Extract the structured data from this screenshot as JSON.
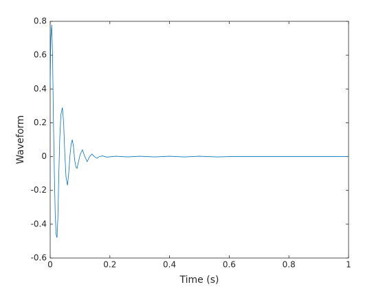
{
  "chart_data": {
    "type": "line",
    "xlabel": "Time (s)",
    "ylabel": "Waveform",
    "x": [
      0,
      0.002,
      0.005,
      0.008,
      0.011,
      0.014,
      0.017,
      0.02,
      0.023,
      0.026,
      0.029,
      0.032,
      0.036,
      0.041,
      0.045,
      0.049,
      0.053,
      0.058,
      0.062,
      0.066,
      0.07,
      0.074,
      0.078,
      0.082,
      0.086,
      0.09,
      0.095,
      0.1,
      0.108,
      0.116,
      0.124,
      0.132,
      0.14,
      0.148,
      0.157,
      0.165,
      0.175,
      0.19,
      0.22,
      0.26,
      0.3,
      0.35,
      0.4,
      0.45,
      0.5,
      0.56,
      0.6,
      1
    ],
    "series": [
      {
        "color": "#0072bd",
        "values": [
          0.42,
          0.7,
          0.78,
          0.6,
          0.2,
          -0.1,
          -0.35,
          -0.46,
          -0.48,
          -0.35,
          -0.1,
          0.1,
          0.25,
          0.29,
          0.2,
          0.02,
          -0.12,
          -0.17,
          -0.1,
          0.0,
          0.07,
          0.1,
          0.06,
          -0.02,
          -0.06,
          -0.07,
          -0.03,
          0.01,
          0.04,
          0.0,
          -0.03,
          0.0,
          0.015,
          0.0,
          -0.01,
          0,
          0.004,
          -0.003,
          0.002,
          -0.002,
          0.002,
          -0.002,
          0.002,
          -0.002,
          0.002,
          -0.002,
          0,
          0
        ]
      }
    ],
    "xlim": [
      0,
      1
    ],
    "xticks": [
      0,
      0.2,
      0.4,
      0.6,
      0.8,
      1
    ],
    "ylim": [
      -0.6,
      0.8
    ],
    "yticks": [
      -0.6,
      -0.4,
      -0.2,
      0,
      0.2,
      0.4,
      0.6,
      0.8
    ]
  }
}
